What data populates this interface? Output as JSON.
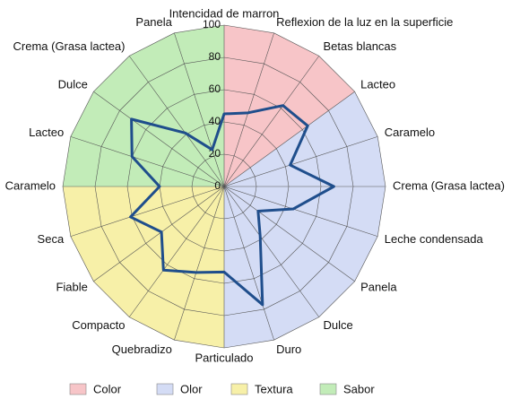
{
  "chart_data": {
    "type": "radar",
    "categories": [
      "Intencidad de marron",
      "Reflexion de la luz en la superficie",
      "Betas blancas",
      "Lacteo",
      "Caramelo",
      "Crema (Grasa lactea)",
      "Leche condensada",
      "Panela",
      "Dulce",
      "Duro",
      "Particulado",
      "Quebradizo",
      "Compacto",
      "Fiable",
      "Seca",
      "Caramelo",
      "Lacteo",
      "Dulce",
      "Crema (Grasa lactea)",
      "Panela"
    ],
    "values": [
      45,
      48,
      62,
      64,
      43,
      68,
      45,
      26,
      38,
      77,
      53,
      56,
      64,
      48,
      61,
      40,
      60,
      71,
      41,
      24
    ],
    "color": "#1f4e8c",
    "groups": [
      {
        "name": "Color",
        "color": "#f7c5c8",
        "count": 3
      },
      {
        "name": "Olor",
        "color": "#d4dcf5",
        "count": 7
      },
      {
        "name": "Textura",
        "color": "#f7f0a8",
        "count": 5
      },
      {
        "name": "Sabor",
        "color": "#c2ecb8",
        "count": 5
      }
    ],
    "ylim": [
      0,
      100
    ],
    "yticks": [
      0,
      20,
      40,
      60,
      80,
      100
    ],
    "grid": true
  }
}
